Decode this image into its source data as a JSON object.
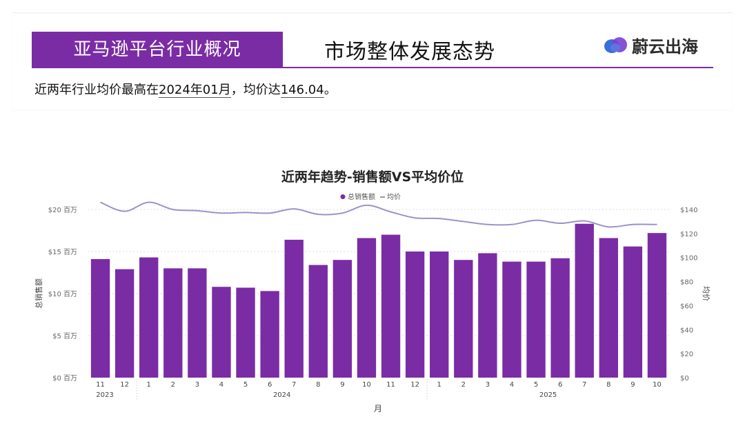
{
  "header": {
    "section_tag": "亚马逊平台行业概况",
    "page_title": "市场整体发展态势",
    "brand_name": "蔚云出海"
  },
  "summary": {
    "prefix": "近两年行业均价最高在",
    "peak_month": "2024年01月",
    "middle": "，均价达",
    "peak_price": "146.04",
    "suffix": "。"
  },
  "colors": {
    "accent": "#7a2ca5",
    "bar": "#7a2ca5",
    "line": "#9a93c8"
  },
  "chart_data": {
    "type": "bar",
    "title": "近两年趋势-销售额VS平均价位",
    "legend": [
      "总销售额",
      "均价"
    ],
    "legend_position": "top-center",
    "xlabel": "月",
    "ylabel_left": "总销售额",
    "ylabel_right": "均价",
    "categories": [
      "11",
      "12",
      "1",
      "2",
      "3",
      "4",
      "5",
      "6",
      "7",
      "8",
      "9",
      "10",
      "11",
      "12",
      "1",
      "2",
      "3",
      "4",
      "5",
      "6",
      "7",
      "8",
      "9",
      "10"
    ],
    "year_groups": [
      {
        "label": "2023",
        "count": 2
      },
      {
        "label": "2024",
        "count": 12
      },
      {
        "label": "2025",
        "count": 10
      }
    ],
    "left_ticks": [
      "$0 百万",
      "$5 百万",
      "$10 百万",
      "$15 百万",
      "$20 百万"
    ],
    "right_ticks": [
      "$0",
      "$20",
      "$40",
      "$60",
      "$80",
      "$100",
      "$120",
      "$140"
    ],
    "ylim_left": [
      0,
      20
    ],
    "ylim_right": [
      0,
      140
    ],
    "grid": true,
    "series": [
      {
        "name": "总销售额",
        "type": "bar",
        "axis": "left",
        "values": [
          14.1,
          12.9,
          14.3,
          13.0,
          13.0,
          10.8,
          10.7,
          10.3,
          16.4,
          13.4,
          14.0,
          16.6,
          17.0,
          15.0,
          15.0,
          14.0,
          14.8,
          13.8,
          13.8,
          14.2,
          18.3,
          16.6,
          15.6,
          17.2
        ]
      },
      {
        "name": "均价",
        "type": "line",
        "axis": "right",
        "values": [
          146,
          138.5,
          146.04,
          140,
          139,
          137,
          137.5,
          137,
          140.5,
          136,
          137,
          143.5,
          138,
          133,
          132.5,
          130,
          127.5,
          127.5,
          131,
          128.5,
          130.5,
          125.5,
          127.5,
          127.5
        ]
      }
    ]
  }
}
